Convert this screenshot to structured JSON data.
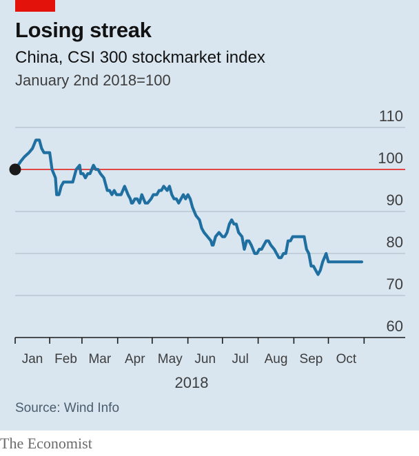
{
  "header": {
    "title": "Losing streak",
    "subtitle": "China, CSI 300 stockmarket index",
    "unit": "January 2nd 2018=100"
  },
  "footer": {
    "source": "Source: Wind Info",
    "brand": "The Economist"
  },
  "colors": {
    "background": "#d9e6f0",
    "line": "#1f6fa0",
    "baseline": "#e3120b",
    "gridline": "#a9b8c4",
    "brand_tag": "#e3120b",
    "start_marker": "#1a1a1a"
  },
  "chart_data": {
    "type": "line",
    "title": "Losing streak",
    "subtitle": "China, CSI 300 stockmarket index",
    "ylabel": "January 2nd 2018=100",
    "xlabel": "2018",
    "ylim": [
      60,
      110
    ],
    "y_ticks": [
      110,
      100,
      90,
      80,
      70,
      60
    ],
    "x_ticks": [
      "Jan",
      "Feb",
      "Mar",
      "Apr",
      "May",
      "Jun",
      "Jul",
      "Aug",
      "Sep",
      "Oct"
    ],
    "year_label": "2018",
    "baseline": 100,
    "grid": true,
    "x_range_days": [
      0,
      304
    ],
    "series": [
      {
        "x": [
          0,
          5,
          8,
          12,
          15,
          18,
          21,
          23,
          25,
          28,
          30,
          32,
          35,
          36,
          38,
          39,
          40,
          42,
          44,
          47,
          50,
          53,
          56,
          57,
          59,
          61,
          63,
          65,
          68,
          70,
          72,
          74,
          77,
          80,
          82,
          84,
          86,
          88,
          90,
          92,
          95,
          98,
          100,
          101,
          102,
          104,
          106,
          108,
          110,
          113,
          115,
          118,
          120,
          123,
          125,
          127,
          129,
          132,
          134,
          136,
          138,
          140,
          142,
          144,
          146,
          148,
          150,
          152,
          154,
          157,
          160,
          162,
          164,
          167,
          170,
          171,
          172,
          174,
          177,
          180,
          182,
          184,
          186,
          188,
          190,
          192,
          194,
          197,
          199,
          201,
          203,
          205,
          208,
          210,
          212,
          214,
          216,
          218,
          220,
          222,
          225,
          227,
          229,
          231,
          233,
          235,
          237,
          239,
          241,
          243,
          245,
          247,
          249,
          251,
          253,
          255,
          257,
          259,
          261,
          263,
          265,
          267,
          270,
          272,
          274,
          276,
          278,
          280,
          282,
          284,
          286,
          288,
          290,
          292,
          294,
          296,
          298,
          299,
          300,
          301
        ],
        "y": [
          100,
          102,
          103,
          104,
          105,
          107,
          107,
          105,
          104,
          104,
          104,
          100,
          98,
          94,
          94,
          95,
          96,
          97,
          97,
          97,
          97,
          100,
          101,
          99,
          99,
          98,
          99,
          99,
          101,
          100,
          100,
          99,
          98,
          95,
          95,
          94,
          95,
          94,
          94,
          94,
          96,
          94,
          93,
          92,
          92,
          93,
          93,
          92,
          94,
          92,
          92,
          93,
          94,
          94,
          95,
          95,
          96,
          95,
          96,
          94,
          93,
          93,
          92,
          93,
          94,
          93,
          94,
          93,
          91,
          89,
          88,
          86,
          85,
          84,
          83,
          82,
          82,
          84,
          85,
          84,
          84,
          85,
          87,
          88,
          87,
          87,
          85,
          84,
          81,
          83,
          83,
          82,
          80,
          80,
          81,
          81,
          82,
          83,
          83,
          82,
          81,
          80,
          79,
          79,
          80,
          80,
          83,
          83,
          84,
          84,
          84,
          84,
          84,
          84,
          81,
          80,
          77,
          77,
          76,
          75,
          76,
          78,
          80,
          78,
          78,
          78,
          78,
          78,
          78,
          78,
          78,
          78,
          78,
          78,
          78,
          78,
          78,
          78,
          78,
          78
        ]
      }
    ]
  }
}
